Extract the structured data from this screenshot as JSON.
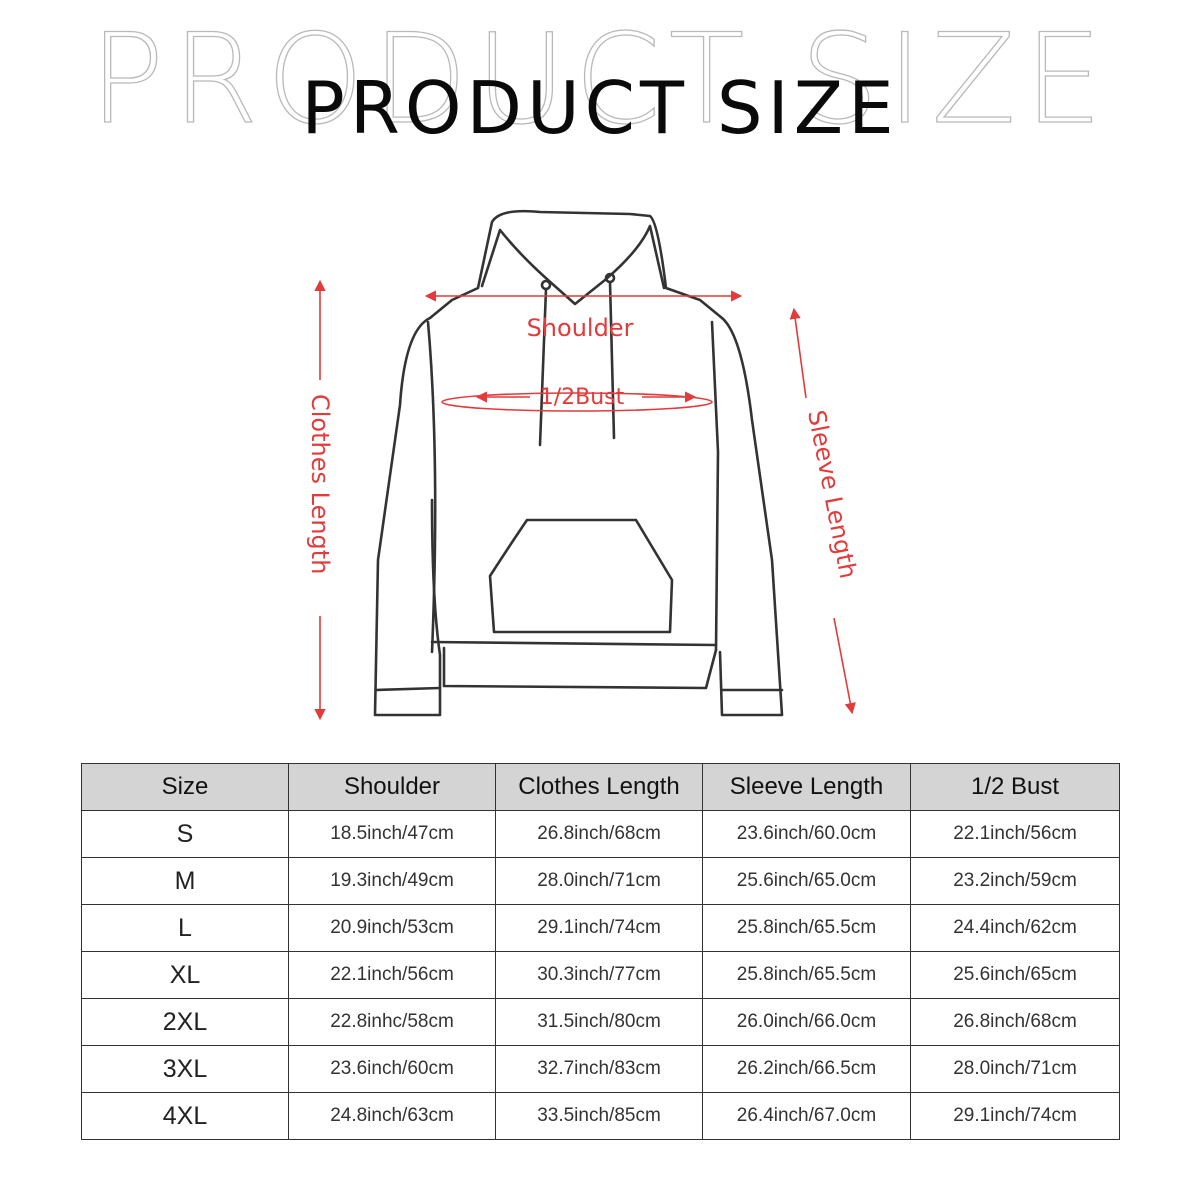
{
  "title": {
    "background": "PRODUCT SIZE",
    "main": "PRODUCT SIZE"
  },
  "diagram_labels": {
    "shoulder": "Shoulder",
    "bust": "1/2Bust",
    "clothes_length": "Clothes Length",
    "sleeve_length": "Sleeve Length"
  },
  "colors": {
    "measure_red": "#e23b3b",
    "outline": "#333333",
    "header_bg": "#d4d4d4"
  },
  "table": {
    "headers": [
      "Size",
      "Shoulder",
      "Clothes Length",
      "Sleeve Length",
      "1/2 Bust"
    ],
    "rows": [
      [
        "S",
        "18.5inch/47cm",
        "26.8inch/68cm",
        "23.6inch/60.0cm",
        "22.1inch/56cm"
      ],
      [
        "M",
        "19.3inch/49cm",
        "28.0inch/71cm",
        "25.6inch/65.0cm",
        "23.2inch/59cm"
      ],
      [
        "L",
        "20.9inch/53cm",
        "29.1inch/74cm",
        "25.8inch/65.5cm",
        "24.4inch/62cm"
      ],
      [
        "XL",
        "22.1inch/56cm",
        "30.3inch/77cm",
        "25.8inch/65.5cm",
        "25.6inch/65cm"
      ],
      [
        "2XL",
        "22.8inhc/58cm",
        "31.5inch/80cm",
        "26.0inch/66.0cm",
        "26.8inch/68cm"
      ],
      [
        "3XL",
        "23.6inch/60cm",
        "32.7inch/83cm",
        "26.2inch/66.5cm",
        "28.0inch/71cm"
      ],
      [
        "4XL",
        "24.8inch/63cm",
        "33.5inch/85cm",
        "26.4inch/67.0cm",
        "29.1inch/74cm"
      ]
    ]
  }
}
